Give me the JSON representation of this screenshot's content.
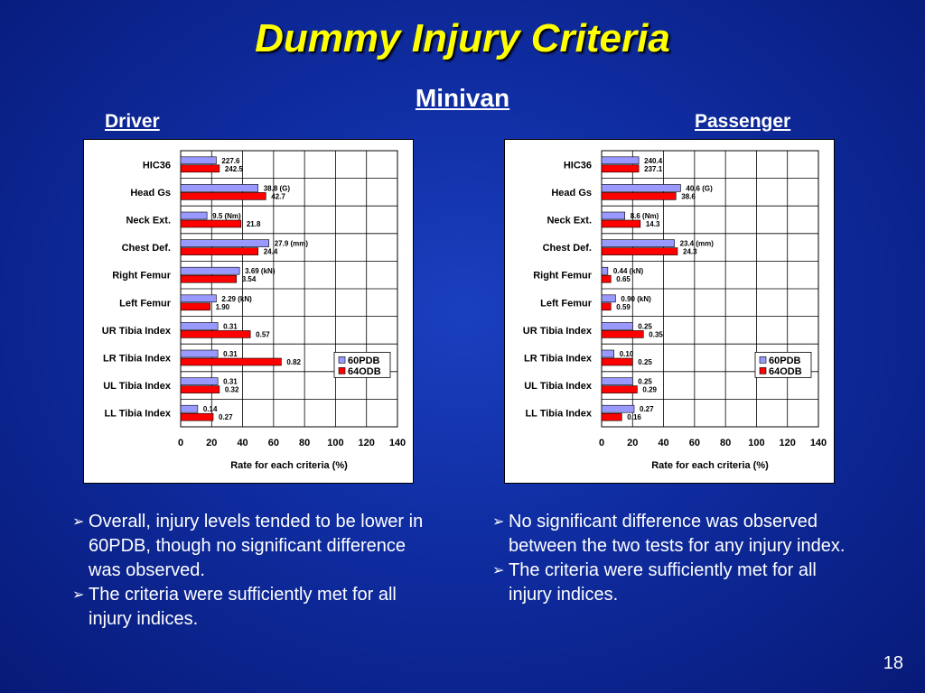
{
  "slide": {
    "title": "Dummy Injury Criteria",
    "subtitle": "Minivan",
    "page_number": "18"
  },
  "panels": {
    "driver_label": "Driver",
    "passenger_label": "Passenger"
  },
  "chart_data": [
    {
      "type": "bar",
      "orientation": "horizontal",
      "categories": [
        "HIC36",
        "Head Gs",
        "Neck Ext.",
        "Chest Def.",
        "Right Femur",
        "Left Femur",
        "UR Tibia Index",
        "LR Tibia Index",
        "UL Tibia Index",
        "LL Tibia Index"
      ],
      "series": [
        {
          "name": "60PDB",
          "color": "#9999ff",
          "values": [
            23,
            50,
            17,
            57,
            38,
            23,
            24,
            24,
            24,
            11
          ],
          "labels": [
            "227.6",
            "38.8 (G)",
            "9.5 (Nm)",
            "27.9 (mm)",
            "3.69 (kN)",
            "2.29 (kN)",
            "0.31",
            "0.31",
            "0.31",
            "0.14"
          ]
        },
        {
          "name": "64ODB",
          "color": "#ff0000",
          "values": [
            25,
            55,
            39,
            50,
            36,
            19,
            45,
            65,
            25,
            21
          ],
          "labels": [
            "242.5",
            "42.7",
            "21.8",
            "24.4",
            "3.54",
            "1.90",
            "0.57",
            "0.82",
            "0.32",
            "0.27"
          ]
        }
      ],
      "xlabel": "Rate for each criteria (%)",
      "xlim": [
        0,
        140
      ],
      "xticks": [
        "0",
        "20",
        "40",
        "60",
        "80",
        "100",
        "120",
        "140"
      ],
      "grid": true,
      "legend": "right-middle"
    },
    {
      "type": "bar",
      "orientation": "horizontal",
      "categories": [
        "HIC36",
        "Head Gs",
        "Neck Ext.",
        "Chest Def.",
        "Right Femur",
        "Left Femur",
        "UR Tibia Index",
        "LR Tibia Index",
        "UL Tibia Index",
        "LL Tibia Index"
      ],
      "series": [
        {
          "name": "60PDB",
          "color": "#9999ff",
          "values": [
            24,
            51,
            15,
            47,
            4,
            9,
            20,
            8,
            20,
            21
          ],
          "labels": [
            "240.4",
            "40.6 (G)",
            "8.6 (Nm)",
            "23.4 (mm)",
            "0.44 (kN)",
            "0.90 (kN)",
            "0.25",
            "0.10",
            "0.25",
            "0.27"
          ]
        },
        {
          "name": "64ODB",
          "color": "#ff0000",
          "values": [
            24,
            48,
            25,
            49,
            6,
            6,
            27,
            20,
            23,
            13
          ],
          "labels": [
            "237.1",
            "38.6",
            "14.3",
            "24.3",
            "0.65",
            "0.59",
            "0.35",
            "0.25",
            "0.29",
            "0.16"
          ]
        }
      ],
      "xlabel": "Rate for each criteria (%)",
      "xlim": [
        0,
        140
      ],
      "xticks": [
        "0",
        "20",
        "40",
        "60",
        "80",
        "100",
        "120",
        "140"
      ],
      "grid": true,
      "legend": "right-middle"
    }
  ],
  "bullets": {
    "left": [
      "Overall, injury levels tended to be lower in 60PDB, though no significant difference was observed.",
      "The criteria were sufficiently met for all injury indices."
    ],
    "right": [
      "No significant difference was observed between the two tests for any injury index.",
      "The criteria were sufficiently met for all injury indices."
    ],
    "arrow_glyph": "➢"
  }
}
